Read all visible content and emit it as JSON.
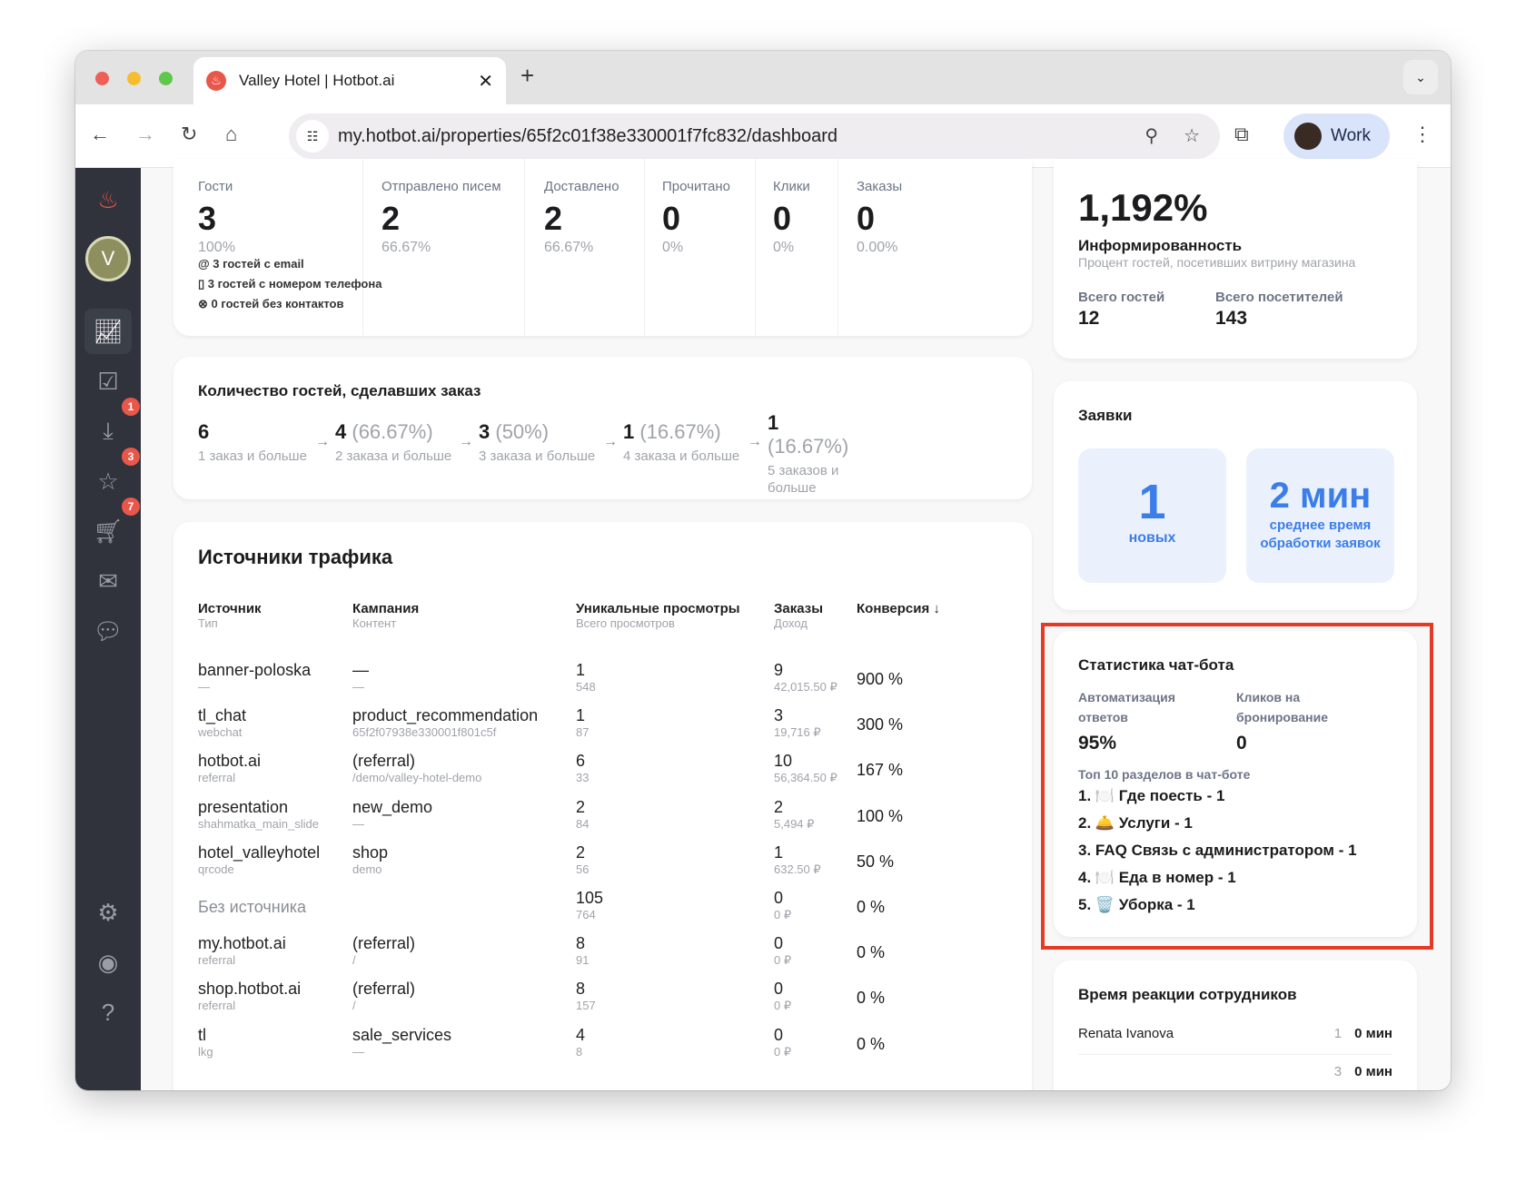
{
  "browser": {
    "tab_title": "Valley Hotel | Hotbot.ai",
    "url": "my.hotbot.ai/properties/65f2c01f38e330001f7fc832/dashboard",
    "profile": "Work"
  },
  "sidebar": {
    "badges": {
      "inbox": "1",
      "reviews": "3",
      "orders": "7"
    }
  },
  "email_stats": {
    "columns": [
      {
        "label": "Гости",
        "value": "3",
        "pct": "100%"
      },
      {
        "label": "Отправлено писем",
        "value": "2",
        "pct": "66.67%"
      },
      {
        "label": "Доставлено",
        "value": "2",
        "pct": "66.67%"
      },
      {
        "label": "Прочитано",
        "value": "0",
        "pct": "0%"
      },
      {
        "label": "Клики",
        "value": "0",
        "pct": "0%"
      },
      {
        "label": "Заказы",
        "value": "0",
        "pct": "0.00%"
      }
    ],
    "contacts": [
      "3 гостей с email",
      "3 гостей с номером телефона",
      "0 гостей без контактов"
    ]
  },
  "funnel": {
    "title": "Количество гостей, сделавших заказ",
    "steps": [
      {
        "value": "6",
        "pct": "",
        "label": "1 заказ и больше"
      },
      {
        "value": "4",
        "pct": "(66.67%)",
        "label": "2 заказа и больше"
      },
      {
        "value": "3",
        "pct": "(50%)",
        "label": "3 заказа и больше"
      },
      {
        "value": "1",
        "pct": "(16.67%)",
        "label": "4 заказа и больше"
      },
      {
        "value": "1",
        "pct": "(16.67%)",
        "label": "5 заказов и больше"
      }
    ]
  },
  "traffic": {
    "title": "Источники трафика",
    "headers": [
      {
        "a": "Источник",
        "b": "Тип"
      },
      {
        "a": "Кампания",
        "b": "Контент"
      },
      {
        "a": "Уникальные просмотры",
        "b": "Всего просмотров"
      },
      {
        "a": "Заказы",
        "b": "Доход"
      },
      {
        "a": "Конверсия ↓",
        "b": ""
      }
    ],
    "rows": [
      {
        "source": "banner-poloska",
        "type": "—",
        "campaign": "—",
        "content": "—",
        "unique": "1",
        "total": "548",
        "orders": "9",
        "revenue": "42,015.50 ₽",
        "conv": "900 %"
      },
      {
        "source": "tl_chat",
        "type": "webchat",
        "campaign": "product_recommendation",
        "content": "65f2f07938e330001f801c5f",
        "unique": "1",
        "total": "87",
        "orders": "3",
        "revenue": "19,716 ₽",
        "conv": "300 %"
      },
      {
        "source": "hotbot.ai",
        "type": "referral",
        "campaign": "(referral)",
        "content": "/demo/valley-hotel-demo",
        "unique": "6",
        "total": "33",
        "orders": "10",
        "revenue": "56,364.50 ₽",
        "conv": "167 %"
      },
      {
        "source": "presentation",
        "type": "shahmatka_main_slide",
        "campaign": "new_demo",
        "content": "—",
        "unique": "2",
        "total": "84",
        "orders": "2",
        "revenue": "5,494 ₽",
        "conv": "100 %"
      },
      {
        "source": "hotel_valleyhotel",
        "type": "qrcode",
        "campaign": "shop",
        "content": "demo",
        "unique": "2",
        "total": "56",
        "orders": "1",
        "revenue": "632.50 ₽",
        "conv": "50 %"
      },
      {
        "source": "Без источника",
        "type": "",
        "campaign": "",
        "content": "",
        "unique": "105",
        "total": "764",
        "orders": "0",
        "revenue": "0 ₽",
        "conv": "0 %"
      },
      {
        "source": "my.hotbot.ai",
        "type": "referral",
        "campaign": "(referral)",
        "content": "/",
        "unique": "8",
        "total": "91",
        "orders": "0",
        "revenue": "0 ₽",
        "conv": "0 %"
      },
      {
        "source": "shop.hotbot.ai",
        "type": "referral",
        "campaign": "(referral)",
        "content": "/",
        "unique": "8",
        "total": "157",
        "orders": "0",
        "revenue": "0 ₽",
        "conv": "0 %"
      },
      {
        "source": "tl",
        "type": "lkg",
        "campaign": "sale_services",
        "content": "—",
        "unique": "4",
        "total": "8",
        "orders": "0",
        "revenue": "0 ₽",
        "conv": "0 %"
      }
    ]
  },
  "awareness": {
    "value": "1,192%",
    "title": "Информированность",
    "desc": "Процент гостей, посетивших витрину магазина",
    "guests_label": "Всего гостей",
    "guests": "12",
    "visitors_label": "Всего посетителей",
    "visitors": "143"
  },
  "requests": {
    "title": "Заявки",
    "new_value": "1",
    "new_label": "новых",
    "time_value": "2 мин",
    "time_label": "среднее время обработки заявок"
  },
  "chatbot": {
    "title": "Статистика чат-бота",
    "auto_label": "Автоматизация ответов",
    "auto_value": "95%",
    "clicks_label": "Кликов на бронирование",
    "clicks_value": "0",
    "top_label": "Топ 10 разделов в чат-боте",
    "top": [
      "1. 🍽️ Где поесть - 1",
      "2. 🛎️ Услуги - 1",
      "3. FAQ Связь с администратором - 1",
      "4. 🍽️ Еда в номер - 1",
      "5. 🗑️ Уборка - 1"
    ],
    "highlight_color": "#e53a25"
  },
  "reaction": {
    "title": "Время реакции сотрудников",
    "rows": [
      {
        "name": "Renata Ivanova",
        "count": "1",
        "time": "0 мин"
      },
      {
        "name": "",
        "count": "3",
        "time": "0 мин"
      }
    ]
  }
}
